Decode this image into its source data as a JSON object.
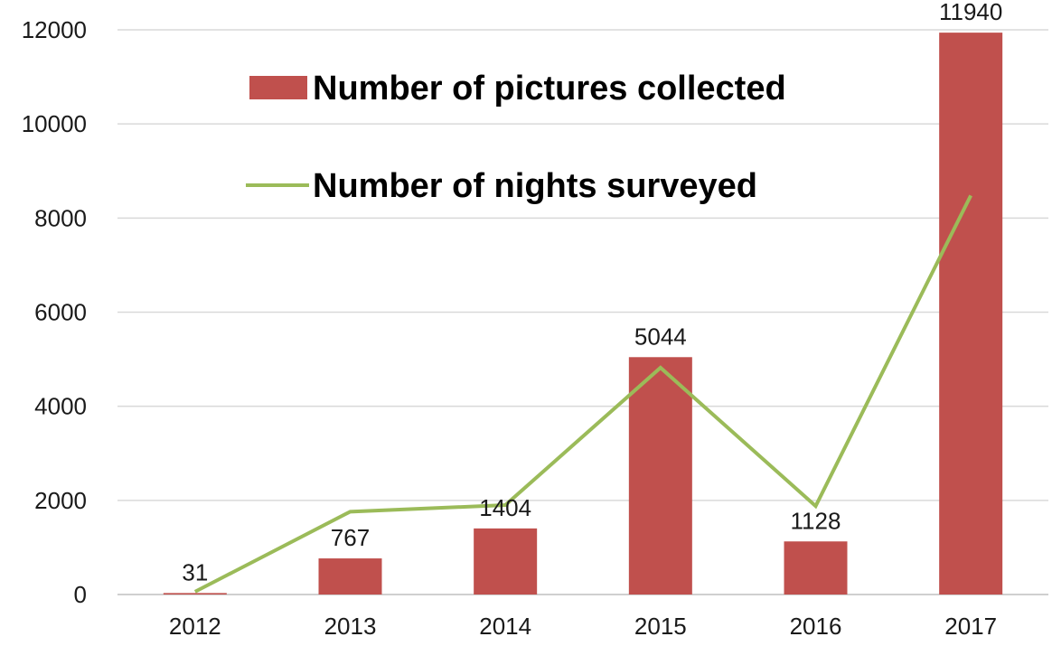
{
  "chart_data": {
    "type": "bar",
    "categories": [
      "2012",
      "2013",
      "2014",
      "2015",
      "2016",
      "2017"
    ],
    "ylim": [
      0,
      12000
    ],
    "yticks": [
      "0",
      "2000",
      "4000",
      "6000",
      "8000",
      "10000",
      "12000"
    ],
    "grid": true,
    "legend_position": "top-left",
    "series": [
      {
        "name": "Number of pictures collected",
        "kind": "bar",
        "color": "#c0504d",
        "values": [
          31,
          767,
          1404,
          5044,
          1128,
          11940
        ],
        "labels": [
          "31",
          "767",
          "1404",
          "5044",
          "1128",
          "11940"
        ]
      },
      {
        "name": "Number of nights surveyed",
        "kind": "line",
        "color": "#9bbb59",
        "values": [
          60,
          1760,
          1900,
          4820,
          1880,
          8480
        ]
      }
    ]
  }
}
